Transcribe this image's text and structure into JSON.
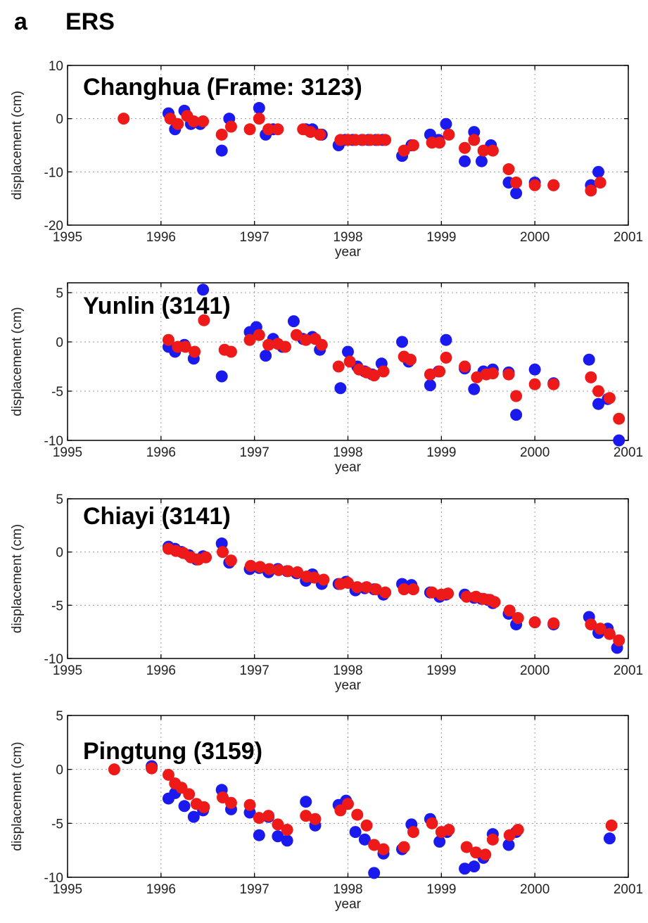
{
  "figure": {
    "panel_letter": "a",
    "heading": "ERS"
  },
  "colors": {
    "series_blue": "#1a1aee",
    "series_red": "#ee1a1a",
    "axis": "#000000",
    "grid": "#9a9a9a"
  },
  "chart_data": [
    {
      "type": "scatter",
      "title": "Changhua (Frame: 3123)",
      "xlabel": "year",
      "ylabel": "displacement (cm)",
      "xlim": [
        1995,
        2001
      ],
      "ylim": [
        -20,
        10
      ],
      "xticks": [
        1995,
        1996,
        1997,
        1998,
        1999,
        2000,
        2001
      ],
      "yticks": [
        10,
        0,
        -10,
        -20
      ],
      "grid": true,
      "series": [
        {
          "color": "blue",
          "x": [
            1996.08,
            1996.15,
            1996.25,
            1996.32,
            1996.42,
            1996.65,
            1996.73,
            1997.05,
            1997.12,
            1997.2,
            1997.55,
            1997.62,
            1997.72,
            1997.9,
            1997.97,
            1998.05,
            1998.15,
            1998.22,
            1998.3,
            1998.37,
            1998.58,
            1998.68,
            1998.88,
            1998.97,
            1999.05,
            1999.25,
            1999.35,
            1999.43,
            1999.53,
            1999.72,
            1999.8,
            2000.0,
            2000.2,
            2000.6,
            2000.68
          ],
          "y": [
            1,
            -2,
            1.5,
            -1,
            -1,
            -6,
            0,
            2,
            -3,
            -2,
            -2,
            -2,
            -3,
            -5,
            -4,
            -4,
            -4,
            -4,
            -4,
            -4,
            -7,
            -5,
            -3,
            -4,
            -1,
            -8,
            -2.5,
            -8,
            -5,
            -12,
            -14,
            -12,
            -12.5,
            -12.5,
            -10
          ]
        },
        {
          "color": "red",
          "x": [
            1995.6,
            1996.1,
            1996.18,
            1996.28,
            1996.35,
            1996.45,
            1996.65,
            1996.75,
            1996.95,
            1997.05,
            1997.15,
            1997.25,
            1997.52,
            1997.6,
            1997.7,
            1997.92,
            1998.0,
            1998.08,
            1998.16,
            1998.24,
            1998.32,
            1998.4,
            1998.6,
            1998.7,
            1998.9,
            1998.98,
            1999.08,
            1999.25,
            1999.35,
            1999.45,
            1999.55,
            1999.72,
            1999.8,
            2000.0,
            2000.2,
            2000.6,
            2000.7
          ],
          "y": [
            0,
            0,
            -1,
            0.5,
            -0.5,
            -0.5,
            -3,
            -1.5,
            -2,
            0,
            -2,
            -2,
            -2,
            -2.5,
            -3,
            -4,
            -4,
            -4,
            -4,
            -4,
            -4,
            -4,
            -6,
            -5,
            -4.5,
            -4.5,
            -3,
            -5.5,
            -4,
            -6,
            -6,
            -9.5,
            -12,
            -12.5,
            -12.5,
            -13.5,
            -12
          ]
        }
      ]
    },
    {
      "type": "scatter",
      "title": "Yunlin (3141)",
      "xlabel": "year",
      "ylabel": "displacement (cm)",
      "xlim": [
        1995,
        2001
      ],
      "ylim": [
        -10,
        6
      ],
      "xticks": [
        1995,
        1996,
        1997,
        1998,
        1999,
        2000,
        2001
      ],
      "yticks": [
        5,
        0,
        -5,
        -10
      ],
      "grid": true,
      "series": [
        {
          "color": "blue",
          "x": [
            1996.08,
            1996.15,
            1996.25,
            1996.35,
            1996.45,
            1996.65,
            1996.95,
            1997.02,
            1997.12,
            1997.2,
            1997.3,
            1997.42,
            1997.52,
            1997.62,
            1997.7,
            1997.92,
            1998.0,
            1998.1,
            1998.18,
            1998.26,
            1998.36,
            1998.58,
            1998.65,
            1998.88,
            1998.97,
            1999.05,
            1999.25,
            1999.35,
            1999.45,
            1999.55,
            1999.72,
            1999.8,
            2000.0,
            2000.2,
            2000.58,
            2000.68,
            2000.78,
            2000.9
          ],
          "y": [
            -0.5,
            -1,
            -0.3,
            -1.7,
            5.3,
            -3.5,
            1,
            1.5,
            -1.4,
            0.3,
            -0.5,
            2.1,
            0.3,
            0.5,
            -0.8,
            -4.7,
            -1,
            -2.5,
            -3,
            -3.3,
            -2.2,
            0,
            -2,
            -4.4,
            -3,
            0.2,
            -2.7,
            -4.8,
            -3,
            -2.8,
            -3.1,
            -7.4,
            -2.8,
            -4.2,
            -1.8,
            -6.3,
            -5.8,
            -10
          ]
        },
        {
          "color": "red",
          "x": [
            1996.08,
            1996.18,
            1996.26,
            1996.36,
            1996.46,
            1996.68,
            1996.75,
            1996.95,
            1997.05,
            1997.15,
            1997.25,
            1997.33,
            1997.45,
            1997.55,
            1997.65,
            1997.72,
            1997.9,
            1998.02,
            1998.12,
            1998.2,
            1998.28,
            1998.38,
            1998.6,
            1998.67,
            1998.88,
            1998.98,
            1999.05,
            1999.25,
            1999.38,
            1999.48,
            1999.55,
            1999.72,
            1999.8,
            2000.0,
            2000.2,
            2000.6,
            2000.68,
            2000.8,
            2000.9
          ],
          "y": [
            0.2,
            -0.5,
            -0.5,
            -1,
            2.2,
            -0.8,
            -1,
            0.2,
            0.7,
            -0.3,
            -0.2,
            -0.5,
            0.7,
            0.2,
            0.3,
            -0.3,
            -2.5,
            -2,
            -2.8,
            -3.1,
            -3.4,
            -3,
            -1.5,
            -1.8,
            -3.3,
            -3,
            -1.6,
            -2.5,
            -3.6,
            -3.3,
            -3.2,
            -3.3,
            -5.5,
            -4.3,
            -4.3,
            -3.6,
            -5,
            -5.7,
            -7.8
          ]
        }
      ]
    },
    {
      "type": "scatter",
      "title": "Chiayi (3141)",
      "xlabel": "year",
      "ylabel": "displacement (cm)",
      "xlim": [
        1995,
        2001
      ],
      "ylim": [
        -10,
        5
      ],
      "xticks": [
        1995,
        1996,
        1997,
        1998,
        1999,
        2000,
        2001
      ],
      "yticks": [
        5,
        0,
        -5,
        -10
      ],
      "grid": true,
      "series": [
        {
          "color": "blue",
          "x": [
            1996.08,
            1996.15,
            1996.22,
            1996.3,
            1996.38,
            1996.45,
            1996.65,
            1996.73,
            1996.95,
            1997.05,
            1997.15,
            1997.25,
            1997.35,
            1997.45,
            1997.55,
            1997.62,
            1997.72,
            1997.9,
            1997.98,
            1998.08,
            1998.18,
            1998.28,
            1998.38,
            1998.58,
            1998.68,
            1998.88,
            1998.98,
            1999.05,
            1999.25,
            1999.35,
            1999.43,
            1999.5,
            1999.55,
            1999.72,
            1999.8,
            2000.0,
            2000.2,
            2000.58,
            2000.68,
            2000.78,
            2000.88
          ],
          "y": [
            0.5,
            0.3,
            0,
            -0.3,
            -0.7,
            -0.4,
            0.8,
            -1,
            -1.6,
            -1.5,
            -1.9,
            -1.6,
            -1.8,
            -2,
            -2.7,
            -2.1,
            -3,
            -3,
            -2.8,
            -3.6,
            -3.4,
            -3.5,
            -4,
            -3,
            -3.1,
            -3.8,
            -4.2,
            -4,
            -4,
            -4.3,
            -4.4,
            -4.5,
            -4.8,
            -5.8,
            -6.8,
            -6.6,
            -6.8,
            -6.1,
            -7.6,
            -7.2,
            -9
          ]
        },
        {
          "color": "red",
          "x": [
            1996.08,
            1996.16,
            1996.24,
            1996.32,
            1996.4,
            1996.48,
            1996.66,
            1996.75,
            1996.96,
            1997.06,
            1997.16,
            1997.26,
            1997.36,
            1997.46,
            1997.56,
            1997.64,
            1997.74,
            1997.92,
            1998.0,
            1998.1,
            1998.2,
            1998.3,
            1998.4,
            1998.6,
            1998.7,
            1998.9,
            1999.0,
            1999.07,
            1999.27,
            1999.37,
            1999.45,
            1999.52,
            1999.57,
            1999.73,
            1999.82,
            2000.0,
            2000.2,
            2000.6,
            2000.7,
            2000.8,
            2000.9
          ],
          "y": [
            0.3,
            0.1,
            -0.1,
            -0.5,
            -0.7,
            -0.5,
            0,
            -0.8,
            -1.3,
            -1.4,
            -1.6,
            -1.7,
            -1.8,
            -1.9,
            -2.3,
            -2.4,
            -2.6,
            -3,
            -2.9,
            -3.3,
            -3.3,
            -3.5,
            -3.8,
            -3.5,
            -3.5,
            -3.8,
            -4,
            -3.9,
            -4.2,
            -4.2,
            -4.4,
            -4.5,
            -4.7,
            -5.5,
            -6.2,
            -6.6,
            -6.7,
            -6.8,
            -7.2,
            -7.7,
            -8.3
          ]
        }
      ]
    },
    {
      "type": "scatter",
      "title": "Pingtung (3159)",
      "xlabel": "year",
      "ylabel": "displacement (cm)",
      "xlim": [
        1995,
        2001
      ],
      "ylim": [
        -10,
        5
      ],
      "xticks": [
        1995,
        1996,
        1997,
        1998,
        1999,
        2000,
        2001
      ],
      "yticks": [
        5,
        0,
        -5,
        -10
      ],
      "grid": true,
      "series": [
        {
          "color": "blue",
          "x": [
            1995.9,
            1996.08,
            1996.15,
            1996.25,
            1996.35,
            1996.45,
            1996.65,
            1996.75,
            1996.95,
            1997.05,
            1997.15,
            1997.25,
            1997.35,
            1997.55,
            1997.65,
            1997.9,
            1997.98,
            1998.08,
            1998.18,
            1998.28,
            1998.38,
            1998.58,
            1998.68,
            1998.88,
            1998.98,
            1999.06,
            1999.25,
            1999.35,
            1999.45,
            1999.55,
            1999.72,
            1999.8,
            2000.8
          ],
          "y": [
            0.3,
            -2.7,
            -2.2,
            -3.4,
            -4.4,
            -3.8,
            -1.9,
            -3.7,
            -4,
            -6.1,
            -4.4,
            -6.2,
            -6.6,
            -3,
            -5.2,
            -3.3,
            -2.9,
            -5.8,
            -6.5,
            -9.6,
            -7.8,
            -7.4,
            -5.1,
            -4.6,
            -6.7,
            -5.8,
            -9.2,
            -9,
            -8.2,
            -6,
            -7,
            -5.8,
            -6.4
          ]
        },
        {
          "color": "red",
          "x": [
            1995.5,
            1995.9,
            1996.08,
            1996.15,
            1996.22,
            1996.3,
            1996.38,
            1996.46,
            1996.66,
            1996.75,
            1996.95,
            1997.05,
            1997.15,
            1997.25,
            1997.35,
            1997.55,
            1997.65,
            1997.92,
            1998.0,
            1998.1,
            1998.2,
            1998.28,
            1998.38,
            1998.6,
            1998.7,
            1998.9,
            1999.0,
            1999.08,
            1999.27,
            1999.37,
            1999.47,
            1999.55,
            1999.73,
            1999.82,
            2000.82
          ],
          "y": [
            0,
            0.1,
            -0.5,
            -1.3,
            -1.7,
            -2.3,
            -3.2,
            -3.5,
            -2.6,
            -3.1,
            -3.3,
            -4.5,
            -4.3,
            -5.1,
            -5.6,
            -4.3,
            -4.6,
            -3.8,
            -3.2,
            -4.2,
            -5.2,
            -7,
            -7.4,
            -7.2,
            -5.8,
            -5,
            -5.8,
            -5.6,
            -7.2,
            -7.7,
            -7.9,
            -6.5,
            -6.1,
            -5.6,
            -5.2
          ]
        }
      ]
    }
  ]
}
